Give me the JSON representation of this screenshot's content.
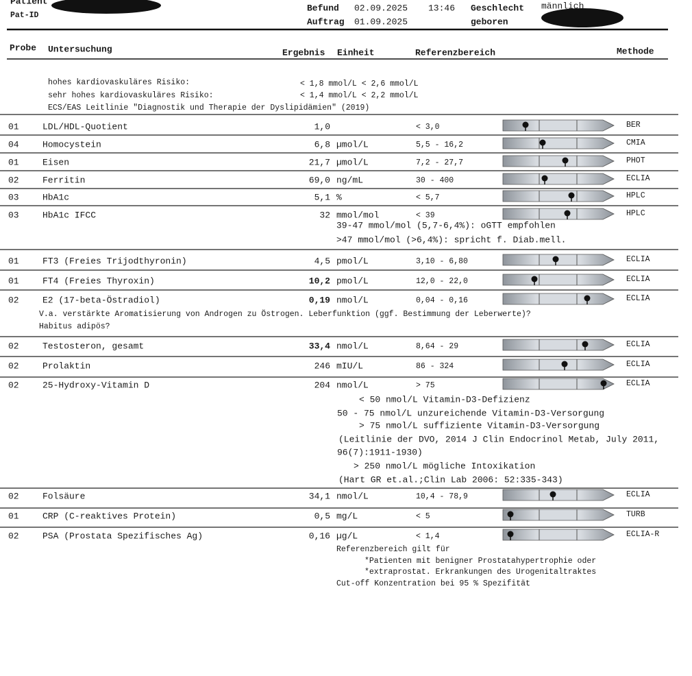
{
  "header": {
    "patient_label": "Patient",
    "pat_id_label": "Pat-ID",
    "befund_label": "Befund",
    "befund_date": "02.09.2025",
    "befund_time": "13:46",
    "geschlecht_label": "Geschlecht",
    "geschlecht": "männlich",
    "auftrag_label": "Auftrag",
    "auftrag_date": "01.09.2025",
    "geboren_label": "geboren"
  },
  "columns": {
    "probe": "Probe",
    "untersuchung": "Untersuchung",
    "ergebnis": "Ergebnis",
    "einheit": "Einheit",
    "referenz": "Referenzbereich",
    "methode": "Methode"
  },
  "intro": [
    {
      "text": "hohes kardiovaskuläres Risiko:",
      "ref": "< 1,8 mmol/L  < 2,6 mmol/L"
    },
    {
      "text": "sehr hohes kardiovaskuläres Risiko:",
      "ref": "< 1,4 mmol/L  < 2,2 mmol/L"
    },
    {
      "text": "ECS/EAS Leitlinie \"Diagnostik und Therapie der Dyslipidämien\" (2019)"
    }
  ],
  "rows": [
    {
      "probe": "01",
      "name": "LDL/HDL-Quotient",
      "result": "1,0",
      "unit": "",
      "reference": "< 3,0",
      "method": "BER"
    },
    {
      "probe": "04",
      "name": "Homocystein",
      "result": "6,8",
      "unit": "µmol/L",
      "reference": "5,5 - 16,2",
      "method": "CMIA"
    },
    {
      "probe": "01",
      "name": "Eisen",
      "result": "21,7",
      "unit": "µmol/L",
      "reference": "7,2 - 27,7",
      "method": "PHOT"
    },
    {
      "probe": "02",
      "name": "Ferritin",
      "result": "69,0",
      "unit": "ng/mL",
      "reference": "30 - 400",
      "method": "ECLIA"
    },
    {
      "probe": "03",
      "name": "HbA1c",
      "result": "5,1",
      "unit": "%",
      "reference": "< 5,7",
      "method": "HPLC"
    },
    {
      "probe": "03",
      "name": "HbA1c IFCC",
      "result": "32",
      "unit": "mmol/mol",
      "reference": "< 39",
      "method": "HPLC",
      "notes": [
        "39-47 mmol/mol (5,7-6,4%): oGTT empfohlen",
        ">47 mmol/mol (>6,4%): spricht f. Diab.mell."
      ]
    },
    {
      "probe": "01",
      "name": "FT3 (Freies Trijodthyronin)",
      "result": "4,5",
      "unit": "pmol/L",
      "reference": "3,10 - 6,80",
      "method": "ECLIA"
    },
    {
      "probe": "01",
      "name": "FT4 (Freies Thyroxin)",
      "result": "10,2",
      "unit": "pmol/L",
      "reference": "12,0 - 22,0",
      "method": "ECLIA",
      "bold": true
    },
    {
      "probe": "02",
      "name": "E2 (17-beta-Östradiol)",
      "result": "0,19",
      "unit": "nmol/L",
      "reference": "0,04 - 0,16",
      "method": "ECLIA",
      "bold": true,
      "notes": [
        "V.a. verstärkte Aromatisierung von Androgen zu Östrogen. Leberfunktion (ggf. Bestimmung der Leberwerte)?",
        "Habitus adipös?"
      ]
    },
    {
      "probe": "02",
      "name": "Testosteron, gesamt",
      "result": "33,4",
      "unit": "nmol/L",
      "reference": "8,64 - 29",
      "method": "ECLIA",
      "bold": true
    },
    {
      "probe": "02",
      "name": "Prolaktin",
      "result": "246",
      "unit": "mIU/L",
      "reference": "86 - 324",
      "method": "ECLIA"
    },
    {
      "probe": "02",
      "name": "25-Hydroxy-Vitamin D",
      "result": "204",
      "unit": "nmol/L",
      "reference": "> 75",
      "method": "ECLIA",
      "notes": [
        "< 50 nmol/L Vitamin-D3-Defizienz",
        "50  - 75 nmol/L unzureichende Vitamin-D3-Versorgung",
        "> 75 nmol/L suffiziente Vitamin-D3-Versorgung",
        "(Leitlinie der DVO, 2014 J Clin Endocrinol Metab, July 2011,",
        "96(7):1911-1930)",
        "> 250 nmol/L mögliche Intoxikation",
        "(Hart GR et.al.;Clin Lab 2006: 52:335-343)"
      ]
    },
    {
      "probe": "02",
      "name": "Folsäure",
      "result": "34,1",
      "unit": "nmol/L",
      "reference": "10,4 - 78,9",
      "method": "ECLIA"
    },
    {
      "probe": "01",
      "name": "CRP (C-reaktives Protein)",
      "result": "0,5",
      "unit": "mg/L",
      "reference": "< 5",
      "method": "TURB"
    },
    {
      "probe": "02",
      "name": "PSA (Prostata Spezifisches Ag)",
      "result": "0,16",
      "unit": "µg/L",
      "reference": "< 1,4",
      "method": "ECLIA-R",
      "notes": [
        "Referenzbereich gilt für",
        "*Patienten mit benigner Prostatahypertrophie oder",
        "*extraprostat. Erkrankungen des Urogenitaltraktes",
        "Cut-off Konzentration bei 95 % Spezifität"
      ]
    }
  ]
}
